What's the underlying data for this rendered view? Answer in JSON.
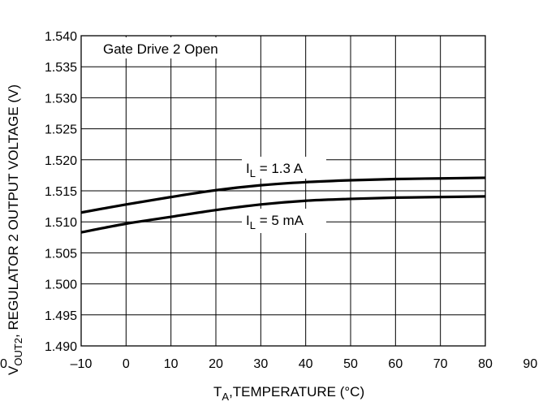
{
  "chart_data": {
    "type": "line",
    "title": "",
    "xlabel": {
      "main": "T",
      "sub": "A",
      "rest": ",TEMPERATURE (°C)"
    },
    "ylabel": {
      "pre": "V",
      "sub": "OUT2",
      "rest": ", REGULATOR 2 OUTPUT VOLTAGE (V)"
    },
    "xlim": [
      -10,
      90
    ],
    "ylim": [
      1.49,
      1.54
    ],
    "x_ticks": [
      -10,
      0,
      10,
      20,
      30,
      40,
      50,
      60,
      70,
      80,
      90
    ],
    "x_tick_labels": [
      "–10",
      "0",
      "10",
      "20",
      "30",
      "40",
      "50",
      "60",
      "70",
      "80",
      "90"
    ],
    "y_ticks": [
      1.49,
      1.495,
      1.5,
      1.505,
      1.51,
      1.515,
      1.52,
      1.525,
      1.53,
      1.535,
      1.54
    ],
    "y_tick_labels": [
      "1.490",
      "1.495",
      "1.500",
      "1.505",
      "1.510",
      "1.515",
      "1.520",
      "1.525",
      "1.530",
      "1.535",
      "1.540"
    ],
    "grid": true,
    "stray_label": "0",
    "annotation": "Gate Drive 2 Open",
    "series": [
      {
        "name": "IL = 1.3 A",
        "label": {
          "main": "I",
          "sub": "L",
          "rest": " = 1.3 A"
        },
        "x": [
          -10,
          0,
          10,
          20,
          30,
          40,
          50,
          60,
          70,
          80
        ],
        "y": [
          1.5115,
          1.5128,
          1.514,
          1.5151,
          1.5159,
          1.5164,
          1.5167,
          1.5169,
          1.517,
          1.5171
        ]
      },
      {
        "name": "IL = 5 mA",
        "label": {
          "main": "I",
          "sub": "L",
          "rest": " = 5 mA"
        },
        "x": [
          -10,
          0,
          10,
          20,
          30,
          40,
          50,
          60,
          70,
          80
        ],
        "y": [
          1.5083,
          1.5097,
          1.5108,
          1.5119,
          1.5128,
          1.5134,
          1.5137,
          1.5139,
          1.514,
          1.5141
        ]
      }
    ]
  }
}
